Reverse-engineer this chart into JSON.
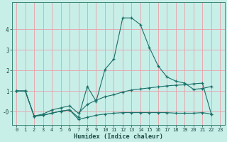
{
  "xlabel": "Humidex (Indice chaleur)",
  "bg_color": "#c8eee8",
  "grid_color": "#e8a0a8",
  "line_color": "#1a7068",
  "xlim": [
    -0.5,
    23.5
  ],
  "ylim": [
    -0.65,
    5.3
  ],
  "xticks": [
    0,
    1,
    2,
    3,
    4,
    5,
    6,
    7,
    8,
    9,
    10,
    11,
    12,
    13,
    14,
    15,
    16,
    17,
    18,
    19,
    20,
    21,
    22,
    23
  ],
  "yticks": [
    0,
    1,
    2,
    3,
    4
  ],
  "ytick_labels": [
    "-0",
    "1",
    "2",
    "3",
    "4"
  ],
  "line1_x": [
    0,
    1,
    2,
    3,
    4,
    5,
    6,
    7,
    8,
    9,
    10,
    11,
    12,
    13,
    14,
    15,
    16,
    17,
    18,
    19,
    20,
    21,
    22
  ],
  "line1_y": [
    1.0,
    1.0,
    -0.22,
    -0.17,
    -0.08,
    0.02,
    0.08,
    -0.28,
    1.22,
    0.5,
    2.05,
    2.55,
    4.55,
    4.55,
    4.22,
    3.12,
    2.22,
    1.68,
    1.48,
    1.38,
    1.08,
    1.12,
    1.22
  ],
  "line2_x": [
    0,
    1,
    2,
    3,
    4,
    5,
    6,
    7,
    8,
    9,
    10,
    11,
    12,
    13,
    14,
    15,
    16,
    17,
    18,
    19,
    20,
    21,
    22
  ],
  "line2_y": [
    1.0,
    1.0,
    -0.22,
    -0.12,
    0.08,
    0.18,
    0.28,
    -0.08,
    0.35,
    0.55,
    0.72,
    0.82,
    0.95,
    1.05,
    1.1,
    1.15,
    1.2,
    1.25,
    1.28,
    1.3,
    1.35,
    1.38,
    -0.12
  ],
  "line3_x": [
    0,
    1,
    2,
    3,
    4,
    5,
    6,
    7,
    8,
    9,
    10,
    11,
    12,
    13,
    14,
    15,
    16,
    17,
    18,
    19,
    20,
    21,
    22
  ],
  "line3_y": [
    1.0,
    1.0,
    -0.22,
    -0.18,
    -0.08,
    0.02,
    0.08,
    -0.38,
    -0.28,
    -0.18,
    -0.12,
    -0.08,
    -0.05,
    -0.05,
    -0.05,
    -0.05,
    -0.05,
    -0.05,
    -0.08,
    -0.08,
    -0.08,
    -0.05,
    -0.12
  ],
  "dpi": 100,
  "figsize": [
    3.2,
    2.0
  ]
}
